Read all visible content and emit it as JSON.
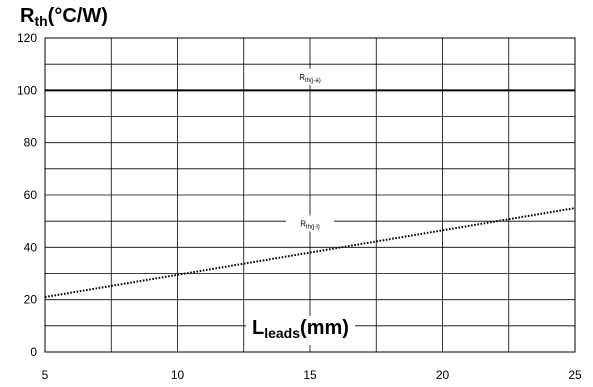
{
  "chart_data": {
    "type": "line",
    "ylabel": {
      "main": "R",
      "sub": "th",
      "suffix": "(°C/W)"
    },
    "xlabel": {
      "main": "L",
      "sub": "leads",
      "suffix": "(mm)"
    },
    "xlim": [
      5,
      25
    ],
    "ylim": [
      0,
      120
    ],
    "x_ticks": [
      5,
      10,
      15,
      20,
      25
    ],
    "y_ticks": [
      0,
      20,
      40,
      60,
      80,
      100,
      120
    ],
    "grid": true,
    "series": [
      {
        "name": "Rth(j-a)",
        "label_main": "R",
        "label_sub": "th(j-a)",
        "style": "solid",
        "x": [
          5,
          25
        ],
        "y": [
          100,
          100
        ]
      },
      {
        "name": "Rth(j-l)",
        "label_main": "R",
        "label_sub": "th(j-l)",
        "style": "dotted",
        "x": [
          5,
          25
        ],
        "y": [
          21,
          55
        ]
      }
    ],
    "annotations": [
      {
        "series": "Rth(j-a)",
        "x": 15,
        "y": 104
      },
      {
        "series": "Rth(j-l)",
        "x": 15,
        "y": 48
      }
    ]
  }
}
